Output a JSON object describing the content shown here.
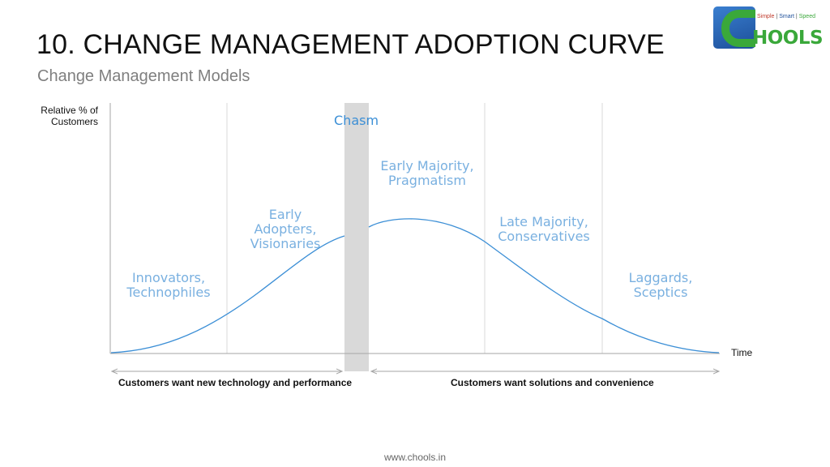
{
  "header": {
    "title": "10. CHANGE MANAGEMENT ADOPTION CURVE",
    "subtitle": "Change Management Models"
  },
  "logo": {
    "word": "HOOLS",
    "tagline": [
      "Simple",
      "Smart",
      "Speed"
    ],
    "colors": {
      "blue": "#1d4f9a",
      "green": "#3aa83a",
      "red": "#c0392b"
    }
  },
  "diagram": {
    "y_axis_label": "Relative % of Customers",
    "x_axis_label": "Time",
    "chasm_label": "Chasm",
    "segments": [
      {
        "line1": "Innovators,",
        "line2": "Technophiles",
        "line3": ""
      },
      {
        "line1": "Early",
        "line2": "Adopters,",
        "line3": "Visionaries"
      },
      {
        "line1": "Early Majority,",
        "line2": "Pragmatism",
        "line3": ""
      },
      {
        "line1": "Late Majority,",
        "line2": "Conservatives",
        "line3": ""
      },
      {
        "line1": "Laggards,",
        "line2": "Sceptics",
        "line3": ""
      }
    ],
    "left_caption": "Customers want new technology and performance",
    "right_caption": "Customers want solutions and convenience",
    "colors": {
      "curve": "#3c8fd6",
      "segment_text": "#79b0e0",
      "chasm_band": "#d9d9d9",
      "axis": "#a6a6a6",
      "divider": "#d9d9d9"
    }
  },
  "footer": {
    "url": "www.chools.in"
  }
}
